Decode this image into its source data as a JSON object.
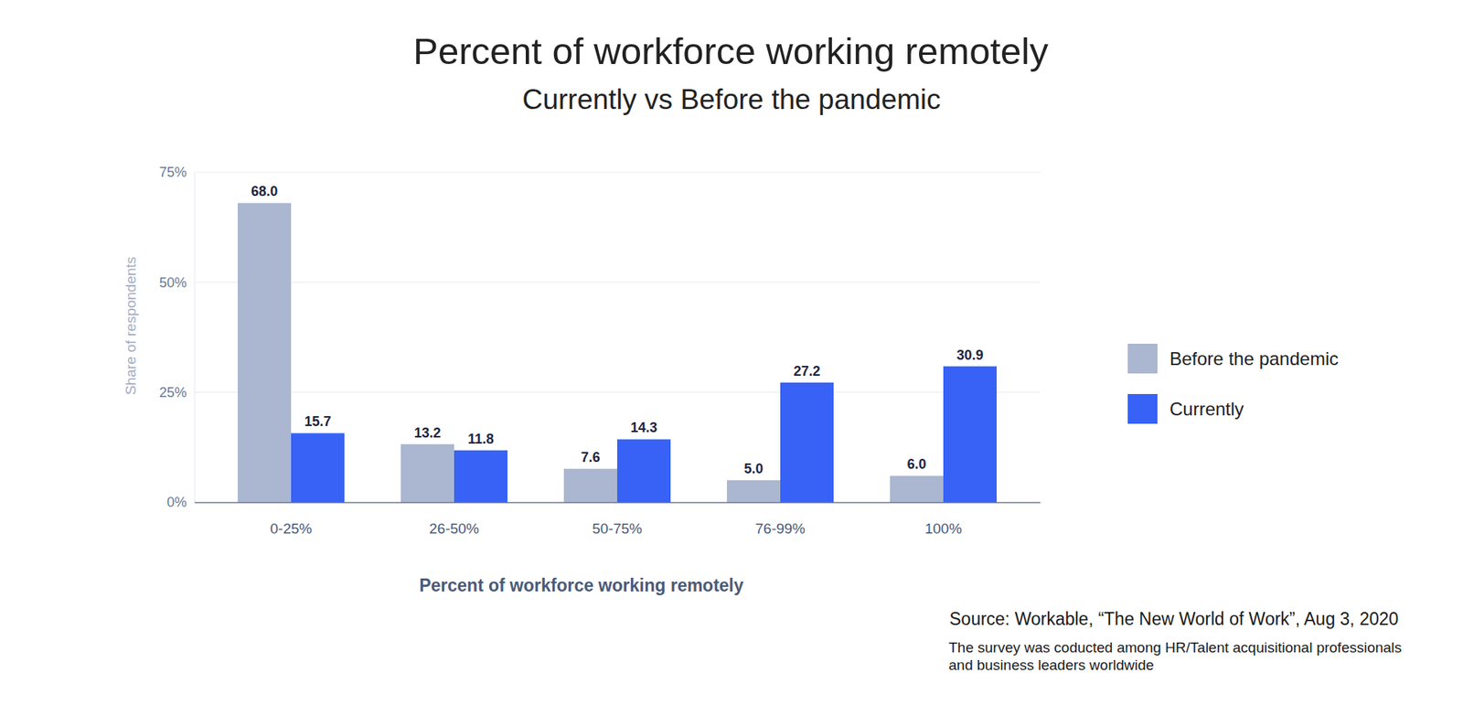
{
  "chart_data": {
    "type": "bar",
    "title": "Percent of workforce working remotely",
    "subtitle": "Currently vs Before the pandemic",
    "x_label": "Percent of workforce working remotely",
    "y_label": "Share of respondents",
    "categories": [
      "0-25%",
      "26-50%",
      "50-75%",
      "76-99%",
      "100%"
    ],
    "series": [
      {
        "name": "Before the pandemic",
        "color": "#abb7d0",
        "values": [
          68.0,
          13.2,
          7.6,
          5.0,
          6.0
        ],
        "value_labels": [
          "68.0",
          "13.2",
          "7.6",
          "5.0",
          "6.0"
        ]
      },
      {
        "name": "Currently",
        "color": "#3762f5",
        "values": [
          15.7,
          11.8,
          14.3,
          27.2,
          30.9
        ],
        "value_labels": [
          "15.7",
          "11.8",
          "14.3",
          "27.2",
          "30.9"
        ]
      }
    ],
    "ylim": [
      0,
      75
    ],
    "yticks": [
      {
        "value": 0,
        "label": "0%"
      },
      {
        "value": 25,
        "label": "25%"
      },
      {
        "value": 50,
        "label": "50%"
      },
      {
        "value": 75,
        "label": "75%"
      }
    ],
    "grid": true,
    "legend": "right",
    "data_labels": true,
    "source": "Source: Workable, “The New World of Work”, Aug 3, 2020",
    "note": [
      "The survey was coducted among HR/Talent acquisitional professionals",
      "and business leaders worldwide"
    ]
  }
}
